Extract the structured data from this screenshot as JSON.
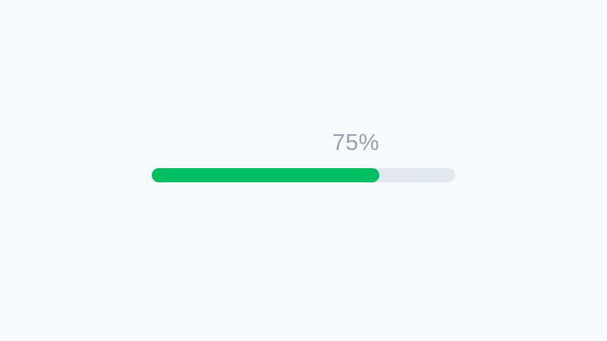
{
  "colors": {
    "background": "#F7F9FA",
    "track": "#E2E8ED",
    "fill": "#00BE62",
    "label": "#98A2B3"
  },
  "progress": {
    "label": "75%",
    "percent": 75
  }
}
